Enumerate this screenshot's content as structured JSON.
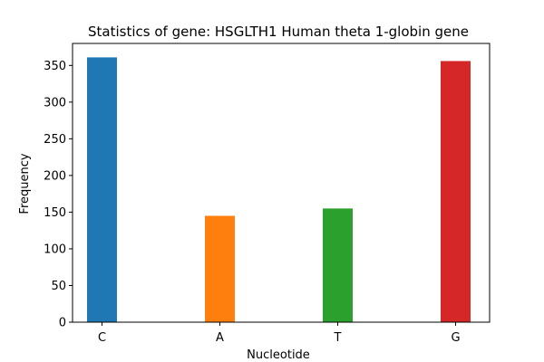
{
  "chart_data": {
    "type": "bar",
    "title": "Statistics of gene: HSGLTH1 Human theta 1-globin gene",
    "xlabel": "Nucleotide",
    "ylabel": "Frequency",
    "categories": [
      "C",
      "A",
      "T",
      "G"
    ],
    "values": [
      361,
      145,
      155,
      356
    ],
    "colors": [
      "#1f77b4",
      "#ff7f0e",
      "#2ca02c",
      "#d62728"
    ],
    "ylim": [
      0,
      380
    ],
    "yticks": [
      0,
      50,
      100,
      150,
      200,
      250,
      300,
      350
    ],
    "grid": false,
    "legend": false
  }
}
